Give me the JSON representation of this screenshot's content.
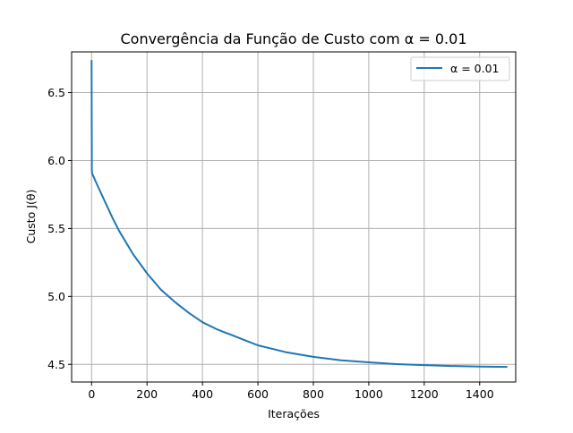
{
  "chart_data": {
    "type": "line",
    "title": "Convergência da Função de Custo com α = 0.01",
    "xlabel": "Iterações",
    "ylabel": "Custo J(θ)",
    "xlim": [
      -72,
      1530
    ],
    "ylim": [
      4.37,
      6.8
    ],
    "xticks": [
      0,
      200,
      400,
      600,
      800,
      1000,
      1200,
      1400
    ],
    "yticks": [
      4.5,
      5.0,
      5.5,
      6.0,
      6.5
    ],
    "xtick_labels": [
      "0",
      "200",
      "400",
      "600",
      "800",
      "1000",
      "1200",
      "1400"
    ],
    "ytick_labels": [
      "4.5",
      "5.0",
      "5.5",
      "6.0",
      "6.5"
    ],
    "grid": true,
    "legend_position": "upper-right",
    "series": [
      {
        "name": "α = 0.01",
        "color": "#1f77b4",
        "x": [
          0,
          1,
          2,
          3,
          25,
          50,
          75,
          100,
          150,
          200,
          250,
          300,
          350,
          400,
          450,
          500,
          600,
          700,
          800,
          900,
          1000,
          1100,
          1200,
          1300,
          1400,
          1500
        ],
        "y": [
          6.74,
          5.93,
          5.905,
          5.9,
          5.8,
          5.69,
          5.58,
          5.48,
          5.31,
          5.17,
          5.05,
          4.96,
          4.88,
          4.81,
          4.76,
          4.72,
          4.64,
          4.59,
          4.555,
          4.53,
          4.515,
          4.502,
          4.494,
          4.488,
          4.484,
          4.481
        ]
      }
    ]
  }
}
